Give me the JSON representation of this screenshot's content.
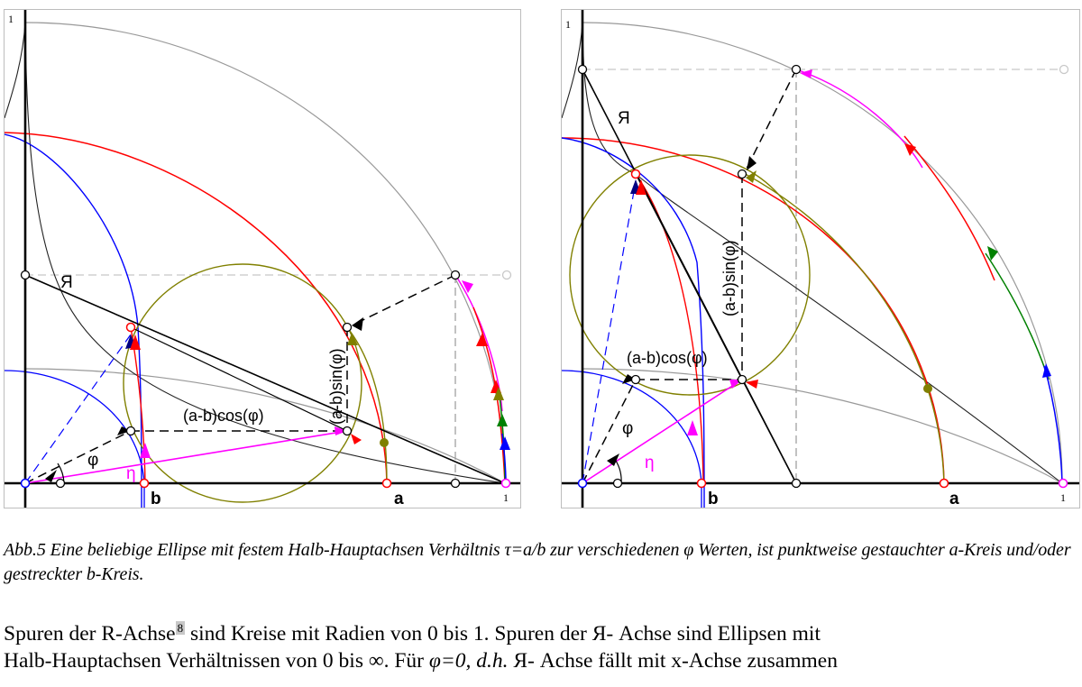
{
  "figure_left": {
    "label_r_axis": "Я",
    "label_phi": "φ",
    "label_eta": "η",
    "label_a": "a",
    "label_b": "b",
    "label_cos": "(a-b)cos(φ)",
    "label_sin": "(a-b)sin(φ)",
    "tick_y1": "1",
    "tick_x1": "1"
  },
  "figure_right": {
    "label_r_axis": "Я",
    "label_phi": "φ",
    "label_eta": "η",
    "label_a": "a",
    "label_b": "b",
    "label_cos": "(a-b)cos(φ)",
    "label_sin": "(a-b)sin(φ)",
    "tick_y1": "1",
    "tick_x1": "1"
  },
  "caption": "Abb.5 Eine beliebige Ellipse mit festem Halb-Hauptachsen Verhältnis τ=a/b zur verschiedenen φ Werten, ist punktweise gestauchter a-Kreis und/oder gestreckter b-Kreis.",
  "body": {
    "line1_before_fn": "Spuren der R-Achse",
    "footnote": "8",
    "line1_after_fn": " sind Kreise mit Radien von 0 bis 1. Spuren der Я- Achse sind Ellipsen mit",
    "line2_normal": "Halb-Hauptachsen Verhältnissen von 0 bis ∞. Für ",
    "line2_italic1": "φ=0, d.h.",
    "line2_end": " Я- Achse fällt mit x-Achse zusammen"
  },
  "colors": {
    "red": "#ff0000",
    "blue": "#0000ff",
    "magenta": "#ff00ff",
    "olive": "#808000",
    "green": "#008000",
    "gray": "#a0a0a0",
    "lightgray": "#c8c8c8",
    "navy": "#000080"
  }
}
